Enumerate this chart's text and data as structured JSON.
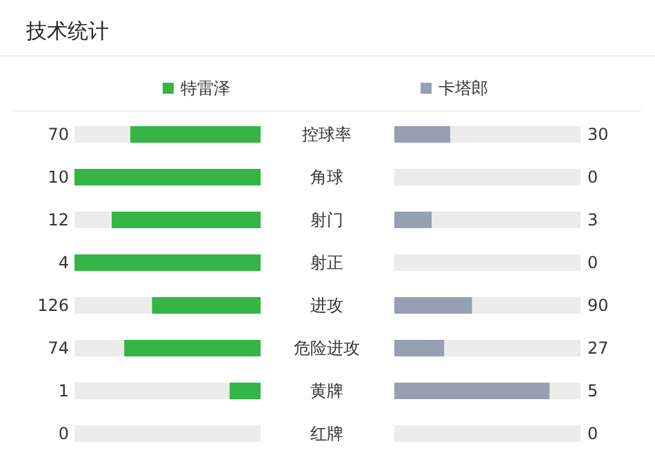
{
  "chart_data": {
    "type": "other",
    "title": "技术统计",
    "categories": [
      "控球率",
      "角球",
      "射门",
      "射正",
      "进攻",
      "危险进攻",
      "黄牌",
      "红牌"
    ],
    "series": [
      {
        "name": "特雷泽",
        "color": "#35b546",
        "values": [
          70,
          10,
          12,
          4,
          126,
          74,
          1,
          0
        ]
      },
      {
        "name": "卡塔郎",
        "color": "#979fb2",
        "values": [
          30,
          0,
          3,
          0,
          90,
          27,
          5,
          0
        ]
      }
    ],
    "data_labels": true,
    "legend": "top"
  }
}
